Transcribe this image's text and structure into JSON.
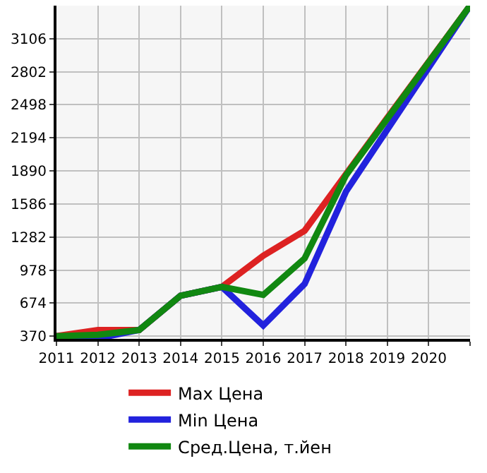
{
  "chart_data": {
    "type": "line",
    "x": [
      2011,
      2012,
      2013,
      2014,
      2015,
      2016,
      2017,
      2018,
      2019,
      2020,
      2021
    ],
    "series": [
      {
        "name": "Max Цена",
        "color": "#dd2222",
        "values": [
          370,
          427,
          427,
          742,
          823,
          1110,
          1340,
          1860,
          2380,
          2895,
          3410
        ]
      },
      {
        "name": "Min Цена",
        "color": "#2222dd",
        "values": [
          370,
          350,
          427,
          742,
          823,
          468,
          850,
          1700,
          2270,
          2840,
          3410
        ]
      },
      {
        "name": "Сред.Цена, т.йен",
        "color": "#118811",
        "values": [
          370,
          383,
          427,
          742,
          823,
          749,
          1085,
          1850,
          2370,
          2890,
          3410
        ]
      }
    ],
    "xlim": [
      2011,
      2021
    ],
    "ylim": [
      345,
      3410
    ],
    "xticks": [
      2011,
      2012,
      2013,
      2014,
      2015,
      2016,
      2017,
      2018,
      2019,
      2020,
      {
        "value": 2021,
        "label": null
      }
    ],
    "yticks": [
      370,
      674,
      978,
      1282,
      1586,
      1890,
      2194,
      2498,
      2802,
      3106
    ],
    "grid": true,
    "legend": "bottom",
    "marker": "none",
    "line_style": "solid"
  }
}
